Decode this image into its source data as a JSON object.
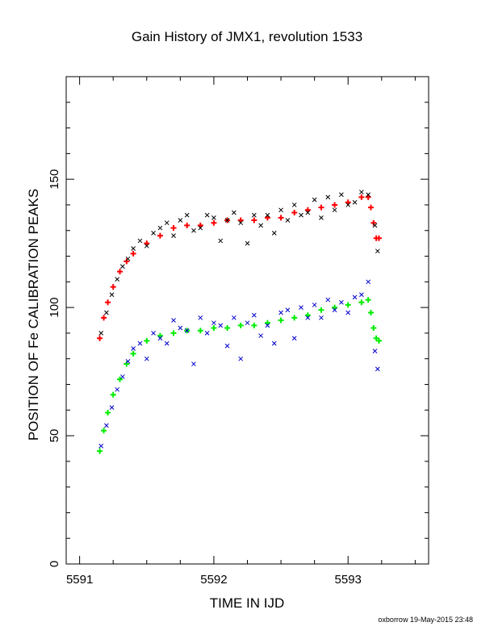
{
  "page": {
    "title": "Gain History of JMX1, revolution 1533",
    "xlabel": "TIME IN IJD",
    "ylabel": "POSITION OF Fe CALIBRATION PEAKS",
    "footer": "oxborrow 19-May-2015 23:48"
  },
  "chart_data": {
    "type": "scatter",
    "title": "Gain History of JMX1, revolution 1533",
    "xlabel": "TIME IN IJD",
    "ylabel": "POSITION OF Fe CALIBRATION PEAKS",
    "xlim": [
      5590.9,
      5593.6
    ],
    "ylim": [
      0,
      190
    ],
    "x_ticks": [
      5591,
      5592,
      5593
    ],
    "x_tick_labels": [
      "5591",
      "5592",
      "5593"
    ],
    "y_ticks": [
      0,
      50,
      100,
      150
    ],
    "y_tick_labels": [
      "0",
      "50",
      "100",
      "150"
    ],
    "grid": false,
    "colors": {
      "raw_upper": "#000000",
      "fit_upper": "#ff0000",
      "raw_lower": "#0000cc",
      "fit_lower": "#00ee00"
    },
    "series": [
      {
        "marker": "+",
        "color": "#ff0000",
        "x": [
          5591.15,
          5591.18,
          5591.21,
          5591.25,
          5591.3,
          5591.35,
          5591.4,
          5591.5,
          5591.6,
          5591.7,
          5591.8,
          5591.9,
          5592.0,
          5592.1,
          5592.2,
          5592.3,
          5592.4,
          5592.5,
          5592.6,
          5592.7,
          5592.8,
          5592.9,
          5593.0,
          5593.1,
          5593.15,
          5593.17,
          5593.19,
          5593.21,
          5593.23
        ],
        "y": [
          88,
          96,
          102,
          108,
          114,
          118,
          121,
          125,
          128,
          131,
          132,
          132,
          133,
          134,
          134,
          134,
          135,
          135,
          137,
          138,
          139,
          140,
          141,
          143,
          143,
          139,
          133,
          127,
          127
        ]
      },
      {
        "marker": "+",
        "color": "#00ee00",
        "x": [
          5591.15,
          5591.18,
          5591.21,
          5591.25,
          5591.3,
          5591.35,
          5591.4,
          5591.5,
          5591.6,
          5591.7,
          5591.8,
          5591.9,
          5592.0,
          5592.1,
          5592.2,
          5592.3,
          5592.4,
          5592.5,
          5592.6,
          5592.7,
          5592.8,
          5592.9,
          5593.0,
          5593.1,
          5593.15,
          5593.17,
          5593.19,
          5593.21,
          5593.23
        ],
        "y": [
          44,
          52,
          59,
          66,
          72,
          78,
          82,
          87,
          89,
          90,
          91,
          91,
          92,
          92,
          93,
          93,
          94,
          95,
          96,
          97,
          99,
          100,
          101,
          102,
          103,
          98,
          92,
          88,
          87
        ]
      },
      {
        "marker": "x",
        "color": "#000000",
        "x": [
          5591.16,
          5591.2,
          5591.24,
          5591.28,
          5591.32,
          5591.36,
          5591.4,
          5591.45,
          5591.5,
          5591.55,
          5591.6,
          5591.65,
          5591.7,
          5591.75,
          5591.8,
          5591.85,
          5591.9,
          5591.95,
          5592.0,
          5592.05,
          5592.1,
          5592.15,
          5592.2,
          5592.25,
          5592.3,
          5592.35,
          5592.4,
          5592.45,
          5592.5,
          5592.55,
          5592.6,
          5592.65,
          5592.7,
          5592.75,
          5592.8,
          5592.85,
          5592.9,
          5592.95,
          5593.0,
          5593.05,
          5593.1,
          5593.15,
          5593.2,
          5593.22
        ],
        "y": [
          90,
          98,
          105,
          111,
          116,
          119,
          123,
          126,
          124,
          129,
          131,
          133,
          128,
          134,
          136,
          130,
          131,
          136,
          135,
          126,
          134,
          137,
          133,
          125,
          136,
          132,
          136,
          129,
          138,
          134,
          140,
          136,
          137,
          142,
          135,
          143,
          138,
          144,
          140,
          141,
          145,
          144,
          132,
          122
        ]
      },
      {
        "marker": "x",
        "color": "#0000cc",
        "x": [
          5591.16,
          5591.2,
          5591.24,
          5591.28,
          5591.32,
          5591.36,
          5591.4,
          5591.45,
          5591.5,
          5591.55,
          5591.6,
          5591.65,
          5591.7,
          5591.75,
          5591.8,
          5591.85,
          5591.9,
          5591.95,
          5592.0,
          5592.05,
          5592.1,
          5592.15,
          5592.2,
          5592.25,
          5592.3,
          5592.35,
          5592.4,
          5592.45,
          5592.5,
          5592.55,
          5592.6,
          5592.65,
          5592.7,
          5592.75,
          5592.8,
          5592.85,
          5592.9,
          5592.95,
          5593.0,
          5593.05,
          5593.1,
          5593.15,
          5593.2,
          5593.22
        ],
        "y": [
          46,
          54,
          61,
          68,
          73,
          79,
          84,
          86,
          80,
          90,
          88,
          86,
          95,
          92,
          91,
          78,
          96,
          90,
          94,
          93,
          85,
          96,
          80,
          94,
          97,
          89,
          93,
          86,
          98,
          99,
          88,
          100,
          96,
          101,
          96,
          103,
          99,
          102,
          98,
          104,
          105,
          110,
          83,
          76
        ]
      }
    ]
  }
}
